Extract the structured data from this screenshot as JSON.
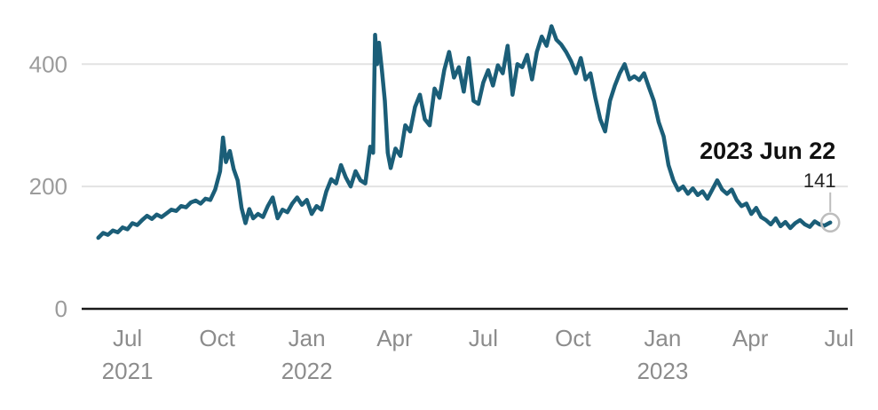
{
  "chart_data": {
    "type": "line",
    "title": "",
    "xlabel": "",
    "ylabel": "",
    "ylim": [
      0,
      470
    ],
    "xlim": [
      "2021-05-15",
      "2023-07-10"
    ],
    "grid": true,
    "y_ticks": [
      {
        "value": 0,
        "label": "0"
      },
      {
        "value": 200,
        "label": "200"
      },
      {
        "value": 400,
        "label": "400"
      }
    ],
    "x_ticks": [
      {
        "date": "2021-07-01",
        "label": "Jul",
        "year": "2021"
      },
      {
        "date": "2021-10-01",
        "label": "Oct",
        "year": ""
      },
      {
        "date": "2022-01-01",
        "label": "Jan",
        "year": "2022"
      },
      {
        "date": "2022-04-01",
        "label": "Apr",
        "year": ""
      },
      {
        "date": "2022-07-01",
        "label": "Jul",
        "year": ""
      },
      {
        "date": "2022-10-01",
        "label": "Oct",
        "year": ""
      },
      {
        "date": "2023-01-01",
        "label": "Jan",
        "year": "2023"
      },
      {
        "date": "2023-04-01",
        "label": "Apr",
        "year": ""
      },
      {
        "date": "2023-07-01",
        "label": "Jul",
        "year": ""
      }
    ],
    "series": [
      {
        "color": "#1b5e78",
        "points": [
          [
            "2021-06-01",
            116
          ],
          [
            "2021-06-06",
            124
          ],
          [
            "2021-06-11",
            121
          ],
          [
            "2021-06-16",
            128
          ],
          [
            "2021-06-21",
            125
          ],
          [
            "2021-06-26",
            133
          ],
          [
            "2021-07-01",
            130
          ],
          [
            "2021-07-06",
            140
          ],
          [
            "2021-07-11",
            137
          ],
          [
            "2021-07-16",
            145
          ],
          [
            "2021-07-21",
            152
          ],
          [
            "2021-07-26",
            147
          ],
          [
            "2021-07-31",
            154
          ],
          [
            "2021-08-05",
            150
          ],
          [
            "2021-08-10",
            156
          ],
          [
            "2021-08-15",
            162
          ],
          [
            "2021-08-20",
            160
          ],
          [
            "2021-08-25",
            168
          ],
          [
            "2021-08-30",
            166
          ],
          [
            "2021-09-04",
            174
          ],
          [
            "2021-09-09",
            177
          ],
          [
            "2021-09-14",
            172
          ],
          [
            "2021-09-19",
            180
          ],
          [
            "2021-09-24",
            178
          ],
          [
            "2021-09-29",
            195
          ],
          [
            "2021-10-04",
            225
          ],
          [
            "2021-10-07",
            280
          ],
          [
            "2021-10-10",
            240
          ],
          [
            "2021-10-14",
            258
          ],
          [
            "2021-10-18",
            228
          ],
          [
            "2021-10-22",
            210
          ],
          [
            "2021-10-26",
            165
          ],
          [
            "2021-10-30",
            140
          ],
          [
            "2021-11-03",
            163
          ],
          [
            "2021-11-07",
            148
          ],
          [
            "2021-11-12",
            155
          ],
          [
            "2021-11-17",
            150
          ],
          [
            "2021-11-22",
            168
          ],
          [
            "2021-11-27",
            182
          ],
          [
            "2021-12-02",
            148
          ],
          [
            "2021-12-07",
            162
          ],
          [
            "2021-12-12",
            158
          ],
          [
            "2021-12-17",
            172
          ],
          [
            "2021-12-22",
            182
          ],
          [
            "2021-12-27",
            170
          ],
          [
            "2022-01-01",
            178
          ],
          [
            "2022-01-06",
            155
          ],
          [
            "2022-01-11",
            168
          ],
          [
            "2022-01-16",
            162
          ],
          [
            "2022-01-21",
            192
          ],
          [
            "2022-01-26",
            212
          ],
          [
            "2022-01-31",
            205
          ],
          [
            "2022-02-05",
            235
          ],
          [
            "2022-02-10",
            215
          ],
          [
            "2022-02-15",
            200
          ],
          [
            "2022-02-20",
            225
          ],
          [
            "2022-02-25",
            210
          ],
          [
            "2022-03-02",
            205
          ],
          [
            "2022-03-07",
            265
          ],
          [
            "2022-03-10",
            255
          ],
          [
            "2022-03-12",
            448
          ],
          [
            "2022-03-14",
            400
          ],
          [
            "2022-03-16",
            435
          ],
          [
            "2022-03-19",
            390
          ],
          [
            "2022-03-22",
            340
          ],
          [
            "2022-03-25",
            255
          ],
          [
            "2022-03-28",
            230
          ],
          [
            "2022-04-02",
            262
          ],
          [
            "2022-04-07",
            250
          ],
          [
            "2022-04-12",
            300
          ],
          [
            "2022-04-17",
            290
          ],
          [
            "2022-04-22",
            330
          ],
          [
            "2022-04-27",
            350
          ],
          [
            "2022-05-02",
            310
          ],
          [
            "2022-05-07",
            300
          ],
          [
            "2022-05-12",
            360
          ],
          [
            "2022-05-17",
            345
          ],
          [
            "2022-05-22",
            390
          ],
          [
            "2022-05-27",
            420
          ],
          [
            "2022-06-01",
            378
          ],
          [
            "2022-06-06",
            395
          ],
          [
            "2022-06-11",
            355
          ],
          [
            "2022-06-16",
            410
          ],
          [
            "2022-06-21",
            340
          ],
          [
            "2022-06-26",
            335
          ],
          [
            "2022-07-01",
            370
          ],
          [
            "2022-07-06",
            390
          ],
          [
            "2022-07-11",
            365
          ],
          [
            "2022-07-16",
            398
          ],
          [
            "2022-07-21",
            385
          ],
          [
            "2022-07-26",
            430
          ],
          [
            "2022-07-31",
            350
          ],
          [
            "2022-08-05",
            400
          ],
          [
            "2022-08-10",
            395
          ],
          [
            "2022-08-15",
            415
          ],
          [
            "2022-08-20",
            375
          ],
          [
            "2022-08-25",
            420
          ],
          [
            "2022-08-30",
            445
          ],
          [
            "2022-09-04",
            430
          ],
          [
            "2022-09-09",
            462
          ],
          [
            "2022-09-14",
            440
          ],
          [
            "2022-09-19",
            432
          ],
          [
            "2022-09-24",
            420
          ],
          [
            "2022-09-29",
            405
          ],
          [
            "2022-10-04",
            385
          ],
          [
            "2022-10-09",
            410
          ],
          [
            "2022-10-14",
            375
          ],
          [
            "2022-10-19",
            385
          ],
          [
            "2022-10-24",
            345
          ],
          [
            "2022-10-29",
            310
          ],
          [
            "2022-11-03",
            290
          ],
          [
            "2022-11-08",
            340
          ],
          [
            "2022-11-13",
            365
          ],
          [
            "2022-11-18",
            385
          ],
          [
            "2022-11-23",
            400
          ],
          [
            "2022-11-28",
            375
          ],
          [
            "2022-12-03",
            380
          ],
          [
            "2022-12-08",
            374
          ],
          [
            "2022-12-13",
            385
          ],
          [
            "2022-12-18",
            362
          ],
          [
            "2022-12-23",
            340
          ],
          [
            "2022-12-28",
            305
          ],
          [
            "2023-01-02",
            282
          ],
          [
            "2023-01-07",
            235
          ],
          [
            "2023-01-12",
            210
          ],
          [
            "2023-01-17",
            194
          ],
          [
            "2023-01-22",
            200
          ],
          [
            "2023-01-27",
            188
          ],
          [
            "2023-02-01",
            197
          ],
          [
            "2023-02-06",
            186
          ],
          [
            "2023-02-11",
            192
          ],
          [
            "2023-02-16",
            180
          ],
          [
            "2023-02-21",
            195
          ],
          [
            "2023-02-26",
            210
          ],
          [
            "2023-03-03",
            195
          ],
          [
            "2023-03-08",
            188
          ],
          [
            "2023-03-13",
            195
          ],
          [
            "2023-03-18",
            178
          ],
          [
            "2023-03-23",
            168
          ],
          [
            "2023-03-28",
            172
          ],
          [
            "2023-04-02",
            155
          ],
          [
            "2023-04-07",
            165
          ],
          [
            "2023-04-12",
            150
          ],
          [
            "2023-04-17",
            145
          ],
          [
            "2023-04-22",
            138
          ],
          [
            "2023-04-27",
            148
          ],
          [
            "2023-05-02",
            135
          ],
          [
            "2023-05-07",
            142
          ],
          [
            "2023-05-12",
            132
          ],
          [
            "2023-05-17",
            140
          ],
          [
            "2023-05-22",
            145
          ],
          [
            "2023-05-27",
            138
          ],
          [
            "2023-06-01",
            134
          ],
          [
            "2023-06-06",
            143
          ],
          [
            "2023-06-11",
            138
          ],
          [
            "2023-06-16",
            136
          ],
          [
            "2023-06-22",
            141
          ]
        ]
      }
    ],
    "annotation": {
      "date": "2023-06-22",
      "value": 141,
      "date_label": "2023 Jun 22",
      "value_label": "141"
    }
  }
}
